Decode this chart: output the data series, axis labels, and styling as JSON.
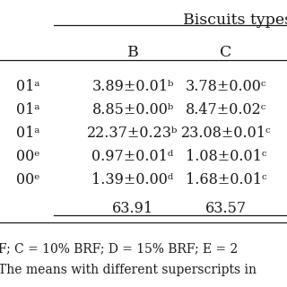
{
  "header_group": "Biscuits types",
  "col_B_header": "B",
  "col_C_header": "C",
  "left_snippets": [
    "01ᵃ",
    "01ᵃ",
    "01ᵃ",
    "00ᵉ",
    "00ᵉ",
    ""
  ],
  "rows": [
    [
      "3.89±0.01ᵇ",
      "3.78±0.00ᶜ"
    ],
    [
      "8.85±0.00ᵇ",
      "8.47±0.02ᶜ"
    ],
    [
      "22.37±0.23ᵇ",
      "23.08±0.01ᶜ"
    ],
    [
      "0.97±0.01ᵈ",
      "1.08±0.01ᶜ"
    ],
    [
      "1.39±0.00ᵈ",
      "1.68±0.01ᶜ"
    ],
    [
      "63.91",
      "63.57"
    ]
  ],
  "footnote1": "F; C = 10% BRF; D = 15% BRF; E = 2",
  "footnote2": "The means with different superscripts in",
  "bg_color": "#ffffff",
  "text_color": "#1a1a1a",
  "font_size": 11.5,
  "header_font_size": 12.5,
  "footnote_font_size": 10.0
}
